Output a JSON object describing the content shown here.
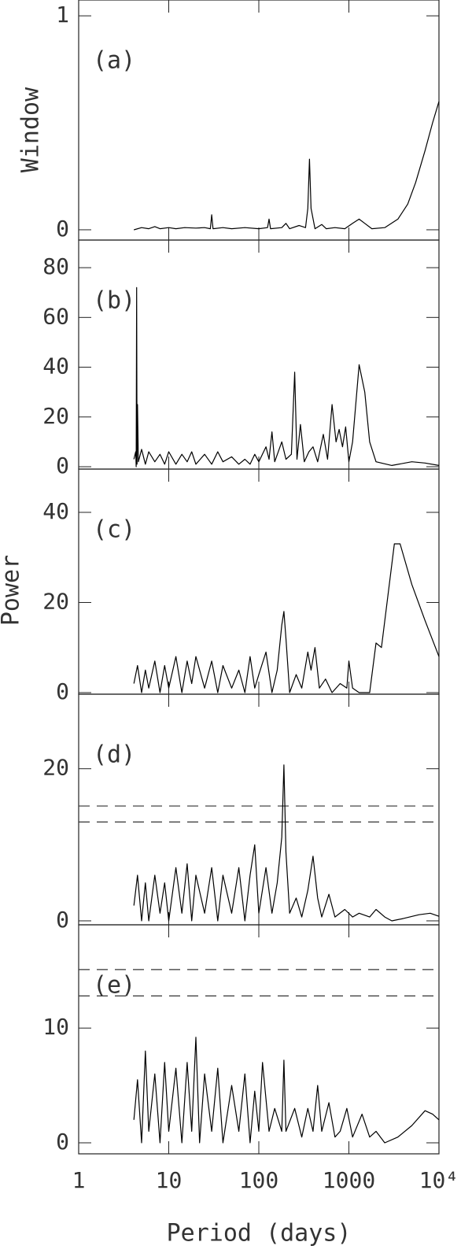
{
  "chart_data": [
    {
      "type": "line",
      "label": "(a)",
      "ylabel": "Window",
      "color": "#000",
      "log_x": true,
      "xlim": [
        1,
        10000
      ],
      "xticks": [
        1,
        10,
        100,
        1000,
        10000
      ],
      "ylim": [
        -0.048,
        1.074
      ],
      "yticks": [
        0,
        1
      ],
      "x": [
        4.1,
        5,
        6,
        7,
        8,
        10,
        12,
        15,
        20,
        25,
        29,
        30,
        31,
        40,
        50,
        70,
        100,
        125,
        130,
        135,
        180,
        200,
        220,
        280,
        330,
        350,
        365,
        380,
        420,
        500,
        560,
        700,
        900,
        1100,
        1300,
        1500,
        1800,
        2500,
        3500,
        4500,
        5500,
        7000,
        8500,
        10000
      ],
      "values": [
        0,
        0.01,
        0.005,
        0.015,
        0.005,
        0.01,
        0.005,
        0.01,
        0.008,
        0.01,
        0.005,
        0.07,
        0.005,
        0.01,
        0.005,
        0.01,
        0.005,
        0.01,
        0.05,
        0.005,
        0.01,
        0.03,
        0.005,
        0.02,
        0.01,
        0.1,
        0.33,
        0.1,
        0.005,
        0.025,
        0.005,
        0.01,
        0.005,
        0.03,
        0.05,
        0.03,
        0.005,
        0.01,
        0.05,
        0.12,
        0.22,
        0.37,
        0.5,
        0.6
      ]
    },
    {
      "type": "line",
      "label": "(b)",
      "color": "#000",
      "log_x": true,
      "xlim": [
        1,
        10000
      ],
      "xticks": [
        1,
        10,
        100,
        1000,
        10000
      ],
      "ylim": [
        -0.95,
        91.1
      ],
      "yticks": [
        0,
        20,
        40,
        60,
        80
      ],
      "x": [
        4.1,
        4.3,
        4.35,
        4.4,
        4.45,
        4.5,
        4.6,
        5,
        5.5,
        6,
        7,
        8,
        9,
        10,
        12,
        14,
        16,
        18,
        20,
        25,
        30,
        35,
        40,
        50,
        60,
        70,
        80,
        90,
        100,
        120,
        130,
        140,
        150,
        180,
        200,
        230,
        250,
        265,
        290,
        320,
        360,
        400,
        450,
        520,
        580,
        650,
        720,
        780,
        850,
        920,
        1000,
        1100,
        1300,
        1500,
        1700,
        2000,
        3000,
        5000,
        7000,
        10000
      ],
      "values": [
        3,
        6,
        0,
        72,
        1,
        25,
        2,
        7,
        1,
        6,
        2,
        5,
        1,
        6,
        1,
        5,
        2,
        6,
        1,
        5,
        1,
        6,
        2,
        4,
        1,
        3,
        1,
        5,
        2,
        8,
        3,
        14,
        2,
        10,
        3,
        5,
        38,
        3,
        17,
        2,
        6,
        8,
        2,
        13,
        3,
        25,
        10,
        15,
        8,
        16,
        2,
        10,
        41,
        30,
        10,
        2,
        0.5,
        2,
        1.5,
        0.5
      ]
    },
    {
      "type": "line",
      "label": "(c)",
      "ylabel": "Power",
      "color": "#000",
      "log_x": true,
      "xlim": [
        1,
        10000
      ],
      "xticks": [
        1,
        10,
        100,
        1000,
        10000
      ],
      "ylim": [
        -0.35,
        49.6
      ],
      "yticks": [
        0,
        20,
        40
      ],
      "x": [
        4.1,
        4.5,
        5,
        5.5,
        6,
        7,
        8,
        9,
        10,
        12,
        14,
        16,
        18,
        20,
        25,
        30,
        35,
        40,
        50,
        60,
        70,
        80,
        90,
        100,
        120,
        140,
        160,
        180,
        190,
        200,
        220,
        260,
        300,
        350,
        380,
        420,
        470,
        550,
        650,
        800,
        950,
        1000,
        1100,
        1300,
        1700,
        2000,
        2300,
        3200,
        3700,
        5000,
        7000,
        10000
      ],
      "values": [
        2,
        6,
        0,
        5,
        1,
        7,
        0,
        6,
        1,
        8,
        0,
        7,
        2,
        8,
        1,
        7,
        0,
        6,
        1,
        5,
        0,
        8,
        1,
        4,
        9,
        0,
        5,
        15,
        18,
        12,
        0,
        4,
        1,
        9,
        5,
        10,
        1,
        3,
        0,
        2,
        1,
        7,
        1,
        0,
        0,
        11,
        10,
        33,
        33,
        24,
        16,
        8
      ]
    },
    {
      "type": "line",
      "label": "(d)",
      "color": "#000",
      "log_x": true,
      "xlim": [
        1,
        10000
      ],
      "xticks": [
        1,
        10,
        100,
        1000,
        10000
      ],
      "ylim": [
        -0.52,
        29.8
      ],
      "yticks": [
        0,
        20
      ],
      "hlines": [
        15.1,
        13.0
      ],
      "x": [
        4.1,
        4.5,
        5,
        5.5,
        6,
        7,
        8,
        9,
        10,
        12,
        14,
        16,
        18,
        20,
        25,
        30,
        35,
        40,
        50,
        60,
        70,
        80,
        90,
        100,
        120,
        140,
        160,
        180,
        190,
        200,
        220,
        260,
        300,
        350,
        400,
        450,
        500,
        600,
        700,
        900,
        1100,
        1300,
        1700,
        2000,
        2500,
        3000,
        4000,
        6000,
        8000,
        10000
      ],
      "values": [
        2,
        6,
        0,
        5,
        0,
        6,
        1,
        5,
        0,
        7,
        1,
        7.5,
        0,
        6,
        1,
        7,
        0,
        6,
        1,
        7,
        0,
        6,
        10,
        1,
        7,
        1,
        5,
        11,
        20.5,
        9,
        1,
        3,
        0.5,
        4,
        8.5,
        3,
        0.5,
        3.5,
        0.5,
        1.5,
        0.5,
        1,
        0.5,
        1.5,
        0.5,
        0,
        0.3,
        0.8,
        1,
        0.6
      ]
    },
    {
      "type": "line",
      "label": "(e)",
      "xlabel": "Period (days)",
      "color": "#000",
      "log_x": true,
      "xlim": [
        1,
        10000
      ],
      "xticks": [
        1,
        10,
        100,
        1000,
        {
          "value": 10000,
          "label": "10⁴"
        }
      ],
      "ylim": [
        -0.96,
        19.0
      ],
      "yticks": [
        0,
        10
      ],
      "hlines": [
        15.1,
        12.8
      ],
      "x": [
        4.1,
        4.5,
        5,
        5.5,
        6,
        7,
        8,
        9,
        10,
        12,
        14,
        16,
        18,
        20,
        22,
        25,
        30,
        35,
        40,
        50,
        60,
        70,
        80,
        90,
        100,
        110,
        130,
        150,
        180,
        190,
        200,
        250,
        300,
        350,
        400,
        450,
        500,
        600,
        700,
        800,
        950,
        1100,
        1400,
        1700,
        2000,
        2500,
        3500,
        5000,
        7000,
        8500,
        10000
      ],
      "values": [
        2,
        5.5,
        0,
        8,
        1,
        6,
        0,
        7,
        1,
        6.5,
        0,
        7,
        1,
        9.2,
        0,
        6,
        1,
        6.5,
        0,
        5,
        1,
        6,
        0,
        4.5,
        1,
        7,
        1,
        3,
        1,
        7.2,
        1,
        3,
        0.5,
        3,
        1,
        5,
        1,
        3.5,
        0.5,
        1,
        3,
        0.5,
        2.5,
        0.5,
        1,
        0,
        0.5,
        1.5,
        2.8,
        2.5,
        2
      ]
    }
  ]
}
